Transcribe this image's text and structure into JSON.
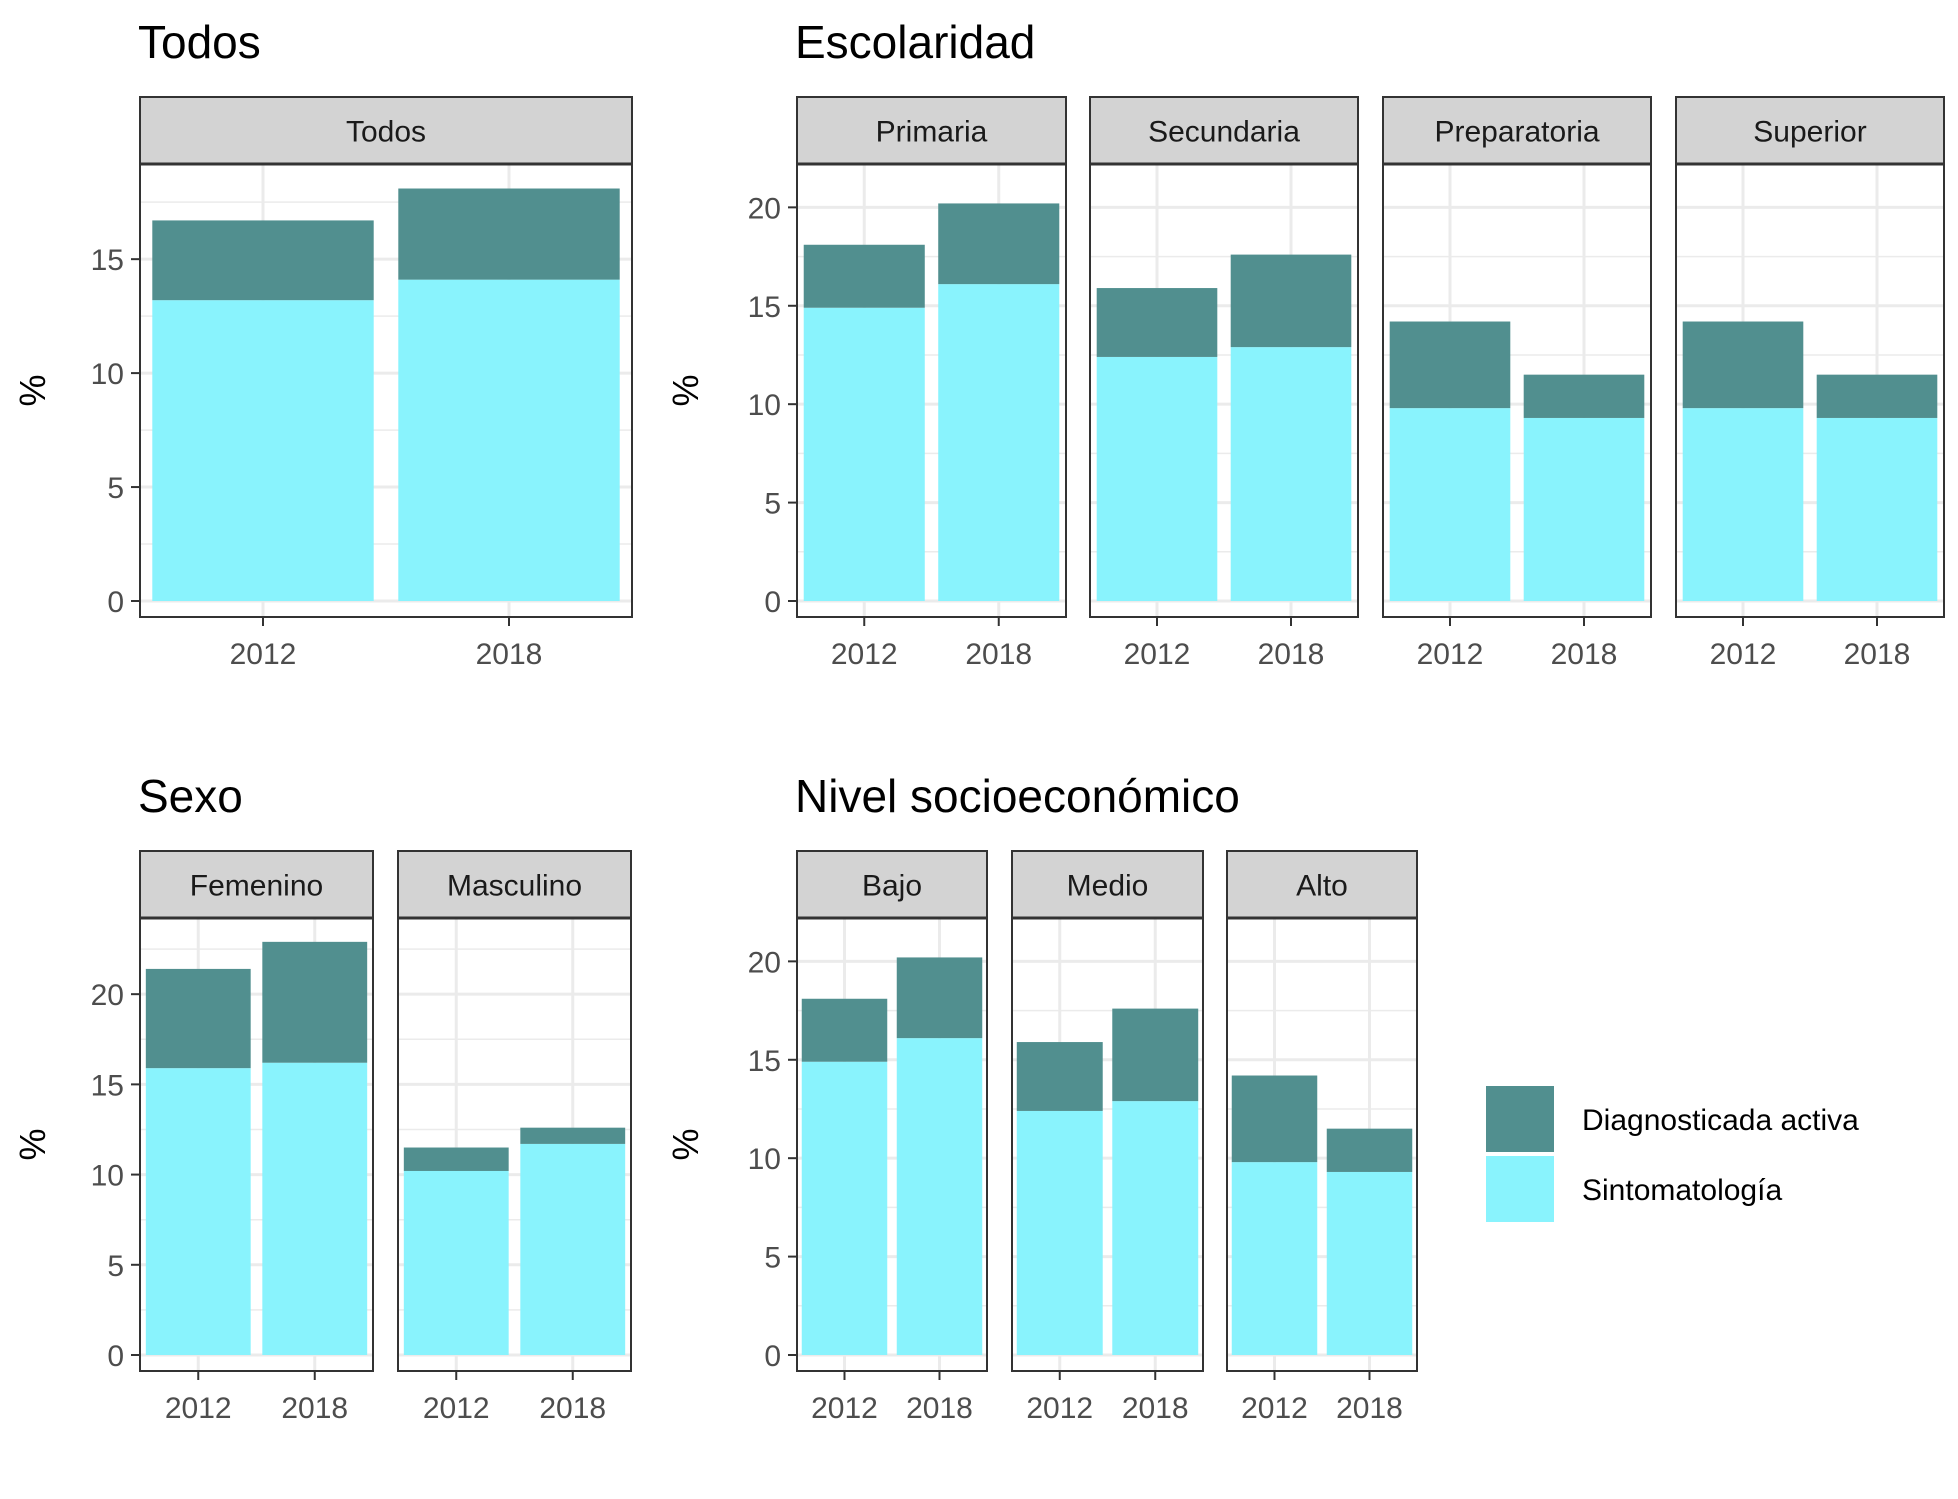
{
  "chart_data": [
    {
      "type": "bar",
      "stacked": true,
      "title": "Todos",
      "ylabel": "%",
      "ylim": [
        0,
        19
      ],
      "yticks": [
        0,
        5,
        10,
        15
      ],
      "categories": [
        "2012",
        "2018"
      ],
      "panels": [
        {
          "label": "Todos",
          "series": [
            {
              "name": "Sintomatología",
              "values": [
                13.2,
                14.1
              ]
            },
            {
              "name": "Diagnosticada activa",
              "values": [
                3.5,
                4.0
              ]
            }
          ]
        }
      ]
    },
    {
      "type": "bar",
      "stacked": true,
      "title": "Escolaridad",
      "ylabel": "%",
      "ylim": [
        0,
        22
      ],
      "yticks": [
        0,
        5,
        10,
        15,
        20
      ],
      "categories": [
        "2012",
        "2018"
      ],
      "panels": [
        {
          "label": "Primaria",
          "series": [
            {
              "name": "Sintomatología",
              "values": [
                14.9,
                16.1
              ]
            },
            {
              "name": "Diagnosticada activa",
              "values": [
                3.2,
                4.1
              ]
            }
          ]
        },
        {
          "label": "Secundaria",
          "series": [
            {
              "name": "Sintomatología",
              "values": [
                12.4,
                12.9
              ]
            },
            {
              "name": "Diagnosticada activa",
              "values": [
                3.5,
                4.7
              ]
            }
          ]
        },
        {
          "label": "Preparatoria",
          "series": [
            {
              "name": "Sintomatología",
              "values": [
                9.8,
                9.3
              ]
            },
            {
              "name": "Diagnosticada activa",
              "values": [
                4.4,
                2.2
              ]
            }
          ]
        },
        {
          "label": "Superior",
          "series": [
            {
              "name": "Sintomatología",
              "values": [
                9.8,
                9.3
              ]
            },
            {
              "name": "Diagnosticada activa",
              "values": [
                4.4,
                2.2
              ]
            }
          ]
        }
      ]
    },
    {
      "type": "bar",
      "stacked": true,
      "title": "Sexo",
      "ylabel": "%",
      "ylim": [
        0,
        24
      ],
      "yticks": [
        0,
        5,
        10,
        15,
        20
      ],
      "categories": [
        "2012",
        "2018"
      ],
      "panels": [
        {
          "label": "Femenino",
          "series": [
            {
              "name": "Sintomatología",
              "values": [
                15.9,
                16.2
              ]
            },
            {
              "name": "Diagnosticada activa",
              "values": [
                5.5,
                6.7
              ]
            }
          ]
        },
        {
          "label": "Masculino",
          "series": [
            {
              "name": "Sintomatología",
              "values": [
                10.2,
                11.7
              ]
            },
            {
              "name": "Diagnosticada activa",
              "values": [
                1.3,
                0.9
              ]
            }
          ]
        }
      ]
    },
    {
      "type": "bar",
      "stacked": true,
      "title": "Nivel socioeconómico",
      "ylabel": "%",
      "ylim": [
        0,
        22
      ],
      "yticks": [
        0,
        5,
        10,
        15,
        20
      ],
      "categories": [
        "2012",
        "2018"
      ],
      "panels": [
        {
          "label": "Bajo",
          "series": [
            {
              "name": "Sintomatología",
              "values": [
                14.9,
                16.1
              ]
            },
            {
              "name": "Diagnosticada activa",
              "values": [
                3.2,
                4.1
              ]
            }
          ]
        },
        {
          "label": "Medio",
          "series": [
            {
              "name": "Sintomatología",
              "values": [
                12.4,
                12.9
              ]
            },
            {
              "name": "Diagnosticada activa",
              "values": [
                3.5,
                4.7
              ]
            }
          ]
        },
        {
          "label": "Alto",
          "series": [
            {
              "name": "Sintomatología",
              "values": [
                9.8,
                9.3
              ]
            },
            {
              "name": "Diagnosticada activa",
              "values": [
                4.4,
                2.2
              ]
            }
          ]
        }
      ]
    }
  ],
  "legend": {
    "placement": "right",
    "items": [
      {
        "name": "Diagnosticada activa",
        "color": "#518f8f"
      },
      {
        "name": "Sintomatología",
        "color": "#89f3fd"
      }
    ]
  },
  "colors": {
    "Sintomatología": "#89f3fd",
    "Diagnosticada activa": "#518f8f",
    "strip_fill": "#d3d3d3",
    "grid": "#ebebeb"
  }
}
